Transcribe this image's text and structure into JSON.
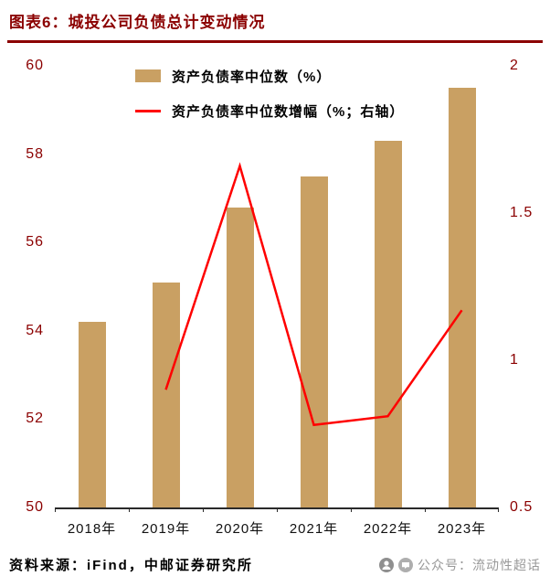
{
  "header": {
    "title": "图表6：城投公司负债总计变动情况"
  },
  "footer": {
    "source": "资料来源：iFind，中邮证券研究所"
  },
  "watermark": {
    "text": "公众号：流动性超话"
  },
  "colors": {
    "accent": "#8B0000",
    "bar": "#C9A063",
    "line": "#FF0000",
    "axis": "#2a2a2a"
  },
  "chart_data": {
    "type": "bar",
    "title": "图表6：城投公司负债总计变动情况",
    "categories": [
      "2018年",
      "2019年",
      "2020年",
      "2021年",
      "2022年",
      "2023年"
    ],
    "series": [
      {
        "name": "资产负债率中位数（%）",
        "type": "bar",
        "axis": "left",
        "color": "#C9A063",
        "values": [
          54.2,
          55.1,
          56.8,
          57.5,
          58.3,
          59.5
        ]
      },
      {
        "name": "资产负债率中位数增幅（%；右轴）",
        "type": "line",
        "axis": "right",
        "color": "#FF0000",
        "values": [
          null,
          0.9,
          1.66,
          0.78,
          0.81,
          1.17
        ]
      }
    ],
    "left_axis": {
      "min": 50,
      "max": 60,
      "ticks": [
        50,
        52,
        54,
        56,
        58,
        60
      ],
      "tick_labels": [
        "50",
        "52",
        "54",
        "56",
        "58",
        "60"
      ]
    },
    "right_axis": {
      "min": 0.5,
      "max": 2,
      "ticks": [
        0.5,
        1,
        1.5,
        2
      ],
      "tick_labels": [
        "0.5",
        "1",
        "1.5",
        "2"
      ]
    },
    "grid": false,
    "legend_position": "top-center"
  }
}
